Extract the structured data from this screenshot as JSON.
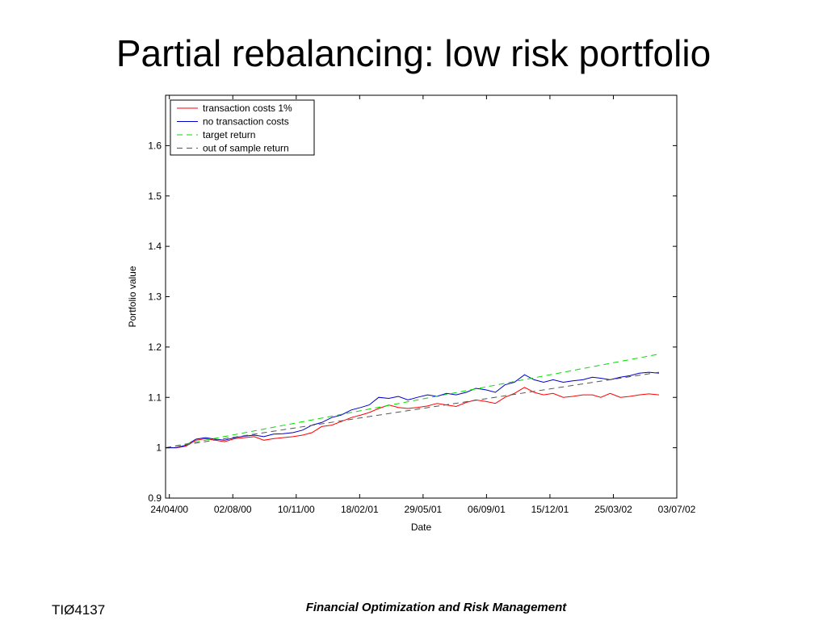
{
  "slide": {
    "title": "Partial rebalancing: low risk portfolio",
    "footer_left": "TIØ4137",
    "footer_center": "Financial Optimization and Risk Management"
  },
  "chart_data": {
    "type": "line",
    "xlabel": "Date",
    "ylabel": "Portfolio value",
    "x_tick_labels": [
      "24/04/00",
      "02/08/00",
      "10/11/00",
      "18/02/01",
      "29/05/01",
      "06/09/01",
      "15/12/01",
      "25/03/02",
      "03/07/02"
    ],
    "x_tick_dates": [
      "2000-04-24",
      "2000-08-02",
      "2000-11-10",
      "2001-02-18",
      "2001-05-29",
      "2001-09-06",
      "2001-12-15",
      "2002-03-25",
      "2002-07-03"
    ],
    "xlim": [
      "2000-04-18",
      "2002-07-03"
    ],
    "y_ticks": [
      0.9,
      1,
      1.1,
      1.2,
      1.3,
      1.4,
      1.5,
      1.6
    ],
    "y_tick_labels": [
      "0.9",
      "1",
      "1.1",
      "1.2",
      "1.3",
      "1.4",
      "1.5",
      "1.6"
    ],
    "ylim": [
      0.9,
      1.7
    ],
    "grid": false,
    "legend_position": "top-left",
    "series": [
      {
        "name": "transaction costs 1%",
        "color": "#ff0000",
        "dash": "solid",
        "points": [
          [
            "2000-04-18",
            1.0
          ],
          [
            "2000-05-05",
            1.0
          ],
          [
            "2000-05-20",
            1.003
          ],
          [
            "2000-06-05",
            1.015
          ],
          [
            "2000-06-20",
            1.018
          ],
          [
            "2000-07-05",
            1.015
          ],
          [
            "2000-07-20",
            1.012
          ],
          [
            "2000-08-05",
            1.018
          ],
          [
            "2000-08-20",
            1.02
          ],
          [
            "2000-09-05",
            1.022
          ],
          [
            "2000-09-20",
            1.015
          ],
          [
            "2000-10-05",
            1.018
          ],
          [
            "2000-10-20",
            1.02
          ],
          [
            "2000-11-05",
            1.022
          ],
          [
            "2000-11-20",
            1.025
          ],
          [
            "2000-12-05",
            1.03
          ],
          [
            "2000-12-20",
            1.042
          ],
          [
            "2001-01-05",
            1.045
          ],
          [
            "2001-01-20",
            1.052
          ],
          [
            "2001-02-05",
            1.06
          ],
          [
            "2001-02-20",
            1.065
          ],
          [
            "2001-03-05",
            1.07
          ],
          [
            "2001-03-20",
            1.078
          ],
          [
            "2001-04-05",
            1.085
          ],
          [
            "2001-04-20",
            1.08
          ],
          [
            "2001-05-05",
            1.078
          ],
          [
            "2001-05-20",
            1.08
          ],
          [
            "2001-06-05",
            1.083
          ],
          [
            "2001-06-20",
            1.088
          ],
          [
            "2001-07-05",
            1.085
          ],
          [
            "2001-07-20",
            1.082
          ],
          [
            "2001-08-05",
            1.09
          ],
          [
            "2001-08-20",
            1.095
          ],
          [
            "2001-09-05",
            1.092
          ],
          [
            "2001-09-20",
            1.088
          ],
          [
            "2001-10-05",
            1.1
          ],
          [
            "2001-10-20",
            1.108
          ],
          [
            "2001-11-05",
            1.12
          ],
          [
            "2001-11-20",
            1.11
          ],
          [
            "2001-12-05",
            1.105
          ],
          [
            "2001-12-20",
            1.108
          ],
          [
            "2002-01-05",
            1.1
          ],
          [
            "2002-01-20",
            1.102
          ],
          [
            "2002-02-05",
            1.105
          ],
          [
            "2002-02-20",
            1.105
          ],
          [
            "2002-03-05",
            1.1
          ],
          [
            "2002-03-20",
            1.108
          ],
          [
            "2002-04-05",
            1.1
          ],
          [
            "2002-04-20",
            1.102
          ],
          [
            "2002-05-05",
            1.105
          ],
          [
            "2002-05-20",
            1.107
          ],
          [
            "2002-06-05",
            1.105
          ]
        ]
      },
      {
        "name": "no transaction costs",
        "color": "#0000cc",
        "dash": "solid",
        "points": [
          [
            "2000-04-18",
            1.0
          ],
          [
            "2000-05-05",
            1.0
          ],
          [
            "2000-05-20",
            1.005
          ],
          [
            "2000-06-05",
            1.017
          ],
          [
            "2000-06-20",
            1.02
          ],
          [
            "2000-07-05",
            1.017
          ],
          [
            "2000-07-20",
            1.015
          ],
          [
            "2000-08-05",
            1.02
          ],
          [
            "2000-08-20",
            1.023
          ],
          [
            "2000-09-05",
            1.025
          ],
          [
            "2000-09-20",
            1.022
          ],
          [
            "2000-10-05",
            1.027
          ],
          [
            "2000-10-20",
            1.028
          ],
          [
            "2000-11-05",
            1.03
          ],
          [
            "2000-11-20",
            1.035
          ],
          [
            "2000-12-05",
            1.045
          ],
          [
            "2000-12-20",
            1.05
          ],
          [
            "2001-01-05",
            1.06
          ],
          [
            "2001-01-20",
            1.065
          ],
          [
            "2001-02-05",
            1.075
          ],
          [
            "2001-02-20",
            1.08
          ],
          [
            "2001-03-05",
            1.085
          ],
          [
            "2001-03-20",
            1.1
          ],
          [
            "2001-04-05",
            1.098
          ],
          [
            "2001-04-20",
            1.102
          ],
          [
            "2001-05-05",
            1.095
          ],
          [
            "2001-05-20",
            1.1
          ],
          [
            "2001-06-05",
            1.105
          ],
          [
            "2001-06-20",
            1.102
          ],
          [
            "2001-07-05",
            1.108
          ],
          [
            "2001-07-20",
            1.105
          ],
          [
            "2001-08-05",
            1.11
          ],
          [
            "2001-08-20",
            1.118
          ],
          [
            "2001-09-05",
            1.115
          ],
          [
            "2001-09-20",
            1.11
          ],
          [
            "2001-10-05",
            1.125
          ],
          [
            "2001-10-20",
            1.13
          ],
          [
            "2001-11-05",
            1.145
          ],
          [
            "2001-11-20",
            1.135
          ],
          [
            "2001-12-05",
            1.13
          ],
          [
            "2001-12-20",
            1.135
          ],
          [
            "2002-01-05",
            1.13
          ],
          [
            "2002-01-20",
            1.133
          ],
          [
            "2002-02-05",
            1.135
          ],
          [
            "2002-02-20",
            1.14
          ],
          [
            "2002-03-05",
            1.138
          ],
          [
            "2002-03-20",
            1.135
          ],
          [
            "2002-04-05",
            1.14
          ],
          [
            "2002-04-20",
            1.143
          ],
          [
            "2002-05-05",
            1.148
          ],
          [
            "2002-05-20",
            1.15
          ],
          [
            "2002-06-05",
            1.148
          ]
        ]
      },
      {
        "name": "target return",
        "color": "#00dd00",
        "dash": "dashed",
        "points": [
          [
            "2000-04-18",
            1.0
          ],
          [
            "2002-06-05",
            1.186
          ]
        ]
      },
      {
        "name": "out of sample return",
        "color": "#555555",
        "dash": "dashed",
        "points": [
          [
            "2000-04-18",
            1.0
          ],
          [
            "2002-06-05",
            1.15
          ]
        ]
      }
    ]
  }
}
